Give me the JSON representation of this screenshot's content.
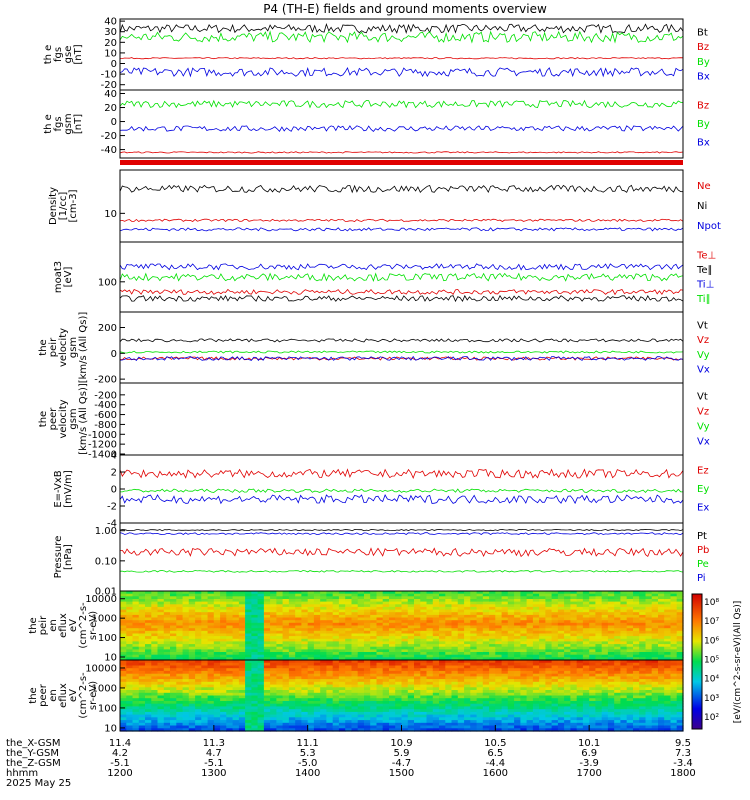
{
  "title": "P4 (TH-E) fields and ground moments overview",
  "colors": {
    "black": "#000000",
    "red": "#e00000",
    "green": "#00e000",
    "blue": "#0000e0"
  },
  "chart_data": [
    {
      "type": "line",
      "id": "fgs_gse",
      "ylabel_lines": [
        "th e",
        "fgs",
        "gse",
        "[nT]"
      ],
      "ylim": [
        -25,
        42
      ],
      "yticks": [
        -20,
        -10,
        0,
        10,
        20,
        30,
        40
      ],
      "series": [
        {
          "name": "Bt",
          "color": "black",
          "base": 33,
          "noise": 4
        },
        {
          "name": "Bz",
          "color": "red",
          "base": 5,
          "noise": 0.6
        },
        {
          "name": "By",
          "color": "green",
          "base": 25,
          "noise": 5
        },
        {
          "name": "Bx",
          "color": "blue",
          "base": -8,
          "noise": 4
        }
      ]
    },
    {
      "type": "line",
      "id": "fgs_gsm",
      "ylabel_lines": [
        "th e",
        "fgs",
        "gsm",
        "[nT]"
      ],
      "ylim": [
        -52,
        45
      ],
      "yticks": [
        -40,
        -20,
        0,
        20,
        40
      ],
      "series": [
        {
          "name": "Bz",
          "color": "red",
          "base": -44,
          "noise": 1
        },
        {
          "name": "By",
          "color": "green",
          "base": 25,
          "noise": 5
        },
        {
          "name": "Bx",
          "color": "blue",
          "base": -10,
          "noise": 4
        }
      ]
    },
    {
      "type": "line",
      "id": "density",
      "log": true,
      "ylabel_lines": [
        "Density",
        "[1/cc]",
        "[cm-3]"
      ],
      "ylim": [
        4,
        40
      ],
      "yticks": [
        10
      ],
      "series": [
        {
          "name": "Ne",
          "color": "red",
          "base": 8,
          "noise": 0.3
        },
        {
          "name": "Ni",
          "color": "black",
          "base": 22,
          "noise": 2.5
        },
        {
          "name": "Npot",
          "color": "blue",
          "base": 6,
          "noise": 0.3
        }
      ]
    },
    {
      "type": "line",
      "id": "temp",
      "log": true,
      "ylabel_lines": [
        "moat3",
        "[eV]"
      ],
      "ylim": [
        55,
        220
      ],
      "yticks": [
        100
      ],
      "series": [
        {
          "name": "Te⊥",
          "color": "red",
          "base": 82,
          "noise": 4
        },
        {
          "name": "Te∥",
          "color": "black",
          "base": 72,
          "noise": 4
        },
        {
          "name": "Ti⊥",
          "color": "blue",
          "base": 135,
          "noise": 8
        },
        {
          "name": "Ti∥",
          "color": "green",
          "base": 110,
          "noise": 8
        }
      ]
    },
    {
      "type": "line",
      "id": "peir_vel",
      "ylabel_lines": [
        "the",
        "peir",
        "velocity",
        "gsm",
        "[km/s (All Qs)]"
      ],
      "ylim": [
        -230,
        320
      ],
      "yticks": [
        -200,
        0,
        200
      ],
      "series": [
        {
          "name": "Vt",
          "color": "black",
          "base": 100,
          "noise": 12
        },
        {
          "name": "Vz",
          "color": "red",
          "base": -40,
          "noise": 12
        },
        {
          "name": "Vy",
          "color": "green",
          "base": 10,
          "noise": 8
        },
        {
          "name": "Vx",
          "color": "blue",
          "base": -40,
          "noise": 15
        }
      ]
    },
    {
      "type": "line",
      "id": "peer_vel",
      "ylabel_lines": [
        "the",
        "peer",
        "velocity",
        "gsm",
        "[km/s (All Qs)]"
      ],
      "ylim": [
        -1420,
        40
      ],
      "yticks": [
        -1400,
        -1200,
        -1000,
        -800,
        -600,
        -400,
        -200
      ],
      "series": [
        {
          "name": "Vt",
          "color": "black",
          "base": null,
          "noise": 0
        },
        {
          "name": "Vz",
          "color": "red",
          "base": null,
          "noise": 0
        },
        {
          "name": "Vy",
          "color": "green",
          "base": null,
          "noise": 0
        },
        {
          "name": "Vx",
          "color": "blue",
          "base": null,
          "noise": 0
        }
      ]
    },
    {
      "type": "line",
      "id": "efield",
      "ylabel_lines": [
        "E=-VxB",
        "[mV/m]"
      ],
      "ylim": [
        -4,
        4
      ],
      "yticks": [
        -4,
        -2,
        0,
        2,
        4
      ],
      "series": [
        {
          "name": "Ez",
          "color": "red",
          "base": 1.8,
          "noise": 0.5
        },
        {
          "name": "Ey",
          "color": "green",
          "base": -0.2,
          "noise": 0.2
        },
        {
          "name": "Ex",
          "color": "blue",
          "base": -1.2,
          "noise": 0.5
        }
      ]
    },
    {
      "type": "line",
      "id": "pressure",
      "log": true,
      "ylabel_lines": [
        "Pressure",
        "[nPa]"
      ],
      "ylim": [
        0.01,
        1.8
      ],
      "yticks": [
        0.01,
        0.1,
        1.0
      ],
      "yticklabels": [
        "0.01",
        "0.10",
        "1.00"
      ],
      "series": [
        {
          "name": "Pt",
          "color": "black",
          "base": 1.05,
          "noise": 0.05
        },
        {
          "name": "Pb",
          "color": "red",
          "base": 0.2,
          "noise": 0.06
        },
        {
          "name": "Pe",
          "color": "green",
          "base": 0.045,
          "noise": 0.003
        },
        {
          "name": "Pi",
          "color": "blue",
          "base": 0.8,
          "noise": 0.06
        }
      ]
    },
    {
      "type": "heatmap",
      "id": "peir_spec",
      "ylabel_lines": [
        "the",
        "peir",
        "en",
        "eflux",
        "eV",
        "(cm^2-s-",
        "sr-eV)"
      ],
      "ylim": [
        7,
        25000
      ],
      "log": true,
      "yticks": [
        10,
        100,
        1000,
        10000
      ],
      "yticklabels": [
        "10",
        "100",
        "1000",
        "10000"
      ]
    },
    {
      "type": "heatmap",
      "id": "peer_spec",
      "ylabel_lines": [
        "the",
        "peer",
        "en",
        "eflux",
        "eV",
        "(cm^2-s-",
        "sr-eV)"
      ],
      "ylim": [
        7,
        25000
      ],
      "log": true,
      "yticks": [
        10,
        100,
        1000,
        10000
      ],
      "yticklabels": [
        "10",
        "100",
        "1000",
        "10000"
      ]
    }
  ],
  "colorbar": {
    "ticks": [
      "10²",
      "10³",
      "10⁴",
      "10⁵",
      "10⁶",
      "10⁷",
      "10⁸"
    ],
    "label": "[eV/(cm^2-s-sr-eV)(All Qs)]"
  },
  "x_axis": {
    "xlim": [
      1200,
      1800
    ],
    "ticks": [
      1200,
      1300,
      1400,
      1500,
      1600,
      1700,
      1800
    ],
    "rows": [
      {
        "name": "the_X-GSM",
        "values": [
          "11.4",
          "11.3",
          "11.1",
          "10.9",
          "10.5",
          "10.1",
          "9.5"
        ]
      },
      {
        "name": "the_Y-GSM",
        "values": [
          "4.2",
          "4.7",
          "5.3",
          "5.9",
          "6.5",
          "6.9",
          "7.3"
        ]
      },
      {
        "name": "the_Z-GSM",
        "values": [
          "-5.1",
          "-5.1",
          "-5.0",
          "-4.7",
          "-4.4",
          "-3.9",
          "-3.4"
        ]
      },
      {
        "name": "hhmm",
        "values": [
          "1200",
          "1300",
          "1400",
          "1500",
          "1600",
          "1700",
          "1800"
        ]
      }
    ],
    "date": "2025 May 25"
  }
}
